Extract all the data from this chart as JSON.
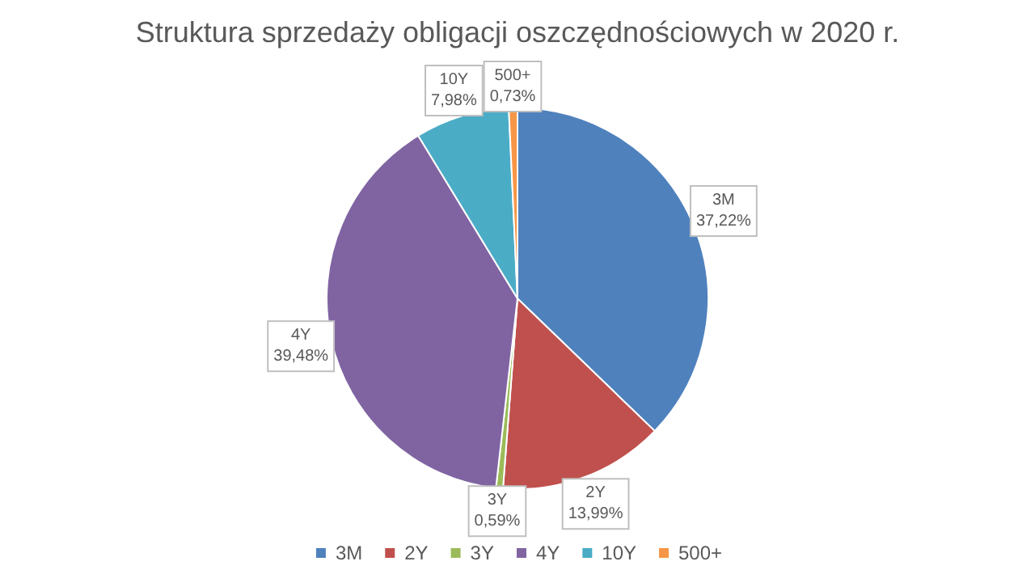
{
  "chart_data": {
    "type": "pie",
    "title": "Struktura sprzedaży obligacji oszczędnościowych w 2020 r.",
    "categories": [
      "3M",
      "2Y",
      "3Y",
      "4Y",
      "10Y",
      "500+"
    ],
    "values": [
      37.22,
      13.99,
      0.59,
      39.48,
      7.98,
      0.73
    ],
    "value_labels": [
      "37,22%",
      "13,99%",
      "0,59%",
      "39,48%",
      "7,98%",
      "0,73%"
    ],
    "colors": [
      "#4f81bd",
      "#c0504d",
      "#9bbb59",
      "#8064a2",
      "#4bacc6",
      "#f79646"
    ],
    "legend": "bottom"
  }
}
